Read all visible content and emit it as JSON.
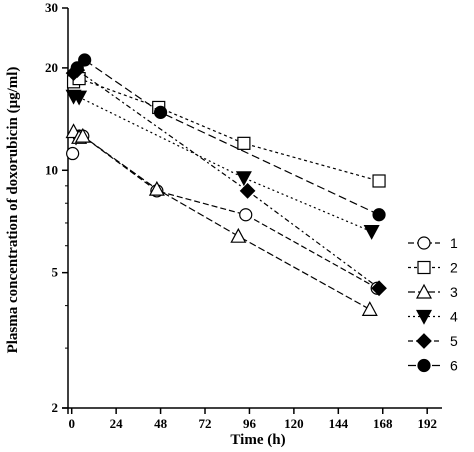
{
  "chart_data": {
    "type": "line",
    "xlabel": "Time (h)",
    "ylabel": "Plasma concentration of doxorubicin (μg/ml)",
    "x_ticks": [
      0,
      24,
      48,
      72,
      96,
      120,
      144,
      168,
      192
    ],
    "y_ticks": [
      2,
      5,
      10,
      20,
      30
    ],
    "xlim": [
      -2,
      200
    ],
    "ylim": [
      2,
      30
    ],
    "y_scale": "log",
    "legend_position": "right",
    "series": [
      {
        "name": "1",
        "marker": "circle-open",
        "dash": "6,3",
        "x": [
          0.5,
          4,
          6,
          46,
          94,
          165
        ],
        "y": [
          11.2,
          12.6,
          12.6,
          8.7,
          7.4,
          4.5
        ]
      },
      {
        "name": "2",
        "marker": "square-open",
        "dash": "3,3",
        "x": [
          1,
          4,
          47,
          93,
          166
        ],
        "y": [
          18.2,
          18.6,
          15.3,
          12.0,
          9.3
        ]
      },
      {
        "name": "3",
        "marker": "triangle-open",
        "dash": "7,3",
        "x": [
          1,
          4,
          6,
          46,
          90,
          161
        ],
        "y": [
          13.0,
          12.5,
          12.6,
          8.8,
          6.4,
          3.9
        ]
      },
      {
        "name": "4",
        "marker": "triangle-down",
        "dash": "2,3",
        "x": [
          1,
          4,
          93,
          162
        ],
        "y": [
          16.5,
          16.4,
          9.5,
          6.6
        ]
      },
      {
        "name": "5",
        "marker": "diamond",
        "dash": "5,3,2,3",
        "x": [
          1,
          3,
          95,
          166
        ],
        "y": [
          19.3,
          19.7,
          8.7,
          4.5
        ]
      },
      {
        "name": "6",
        "marker": "circle",
        "dash": "8,4",
        "x": [
          3,
          7,
          48,
          166
        ],
        "y": [
          20.0,
          21.1,
          14.8,
          7.4
        ]
      }
    ]
  }
}
